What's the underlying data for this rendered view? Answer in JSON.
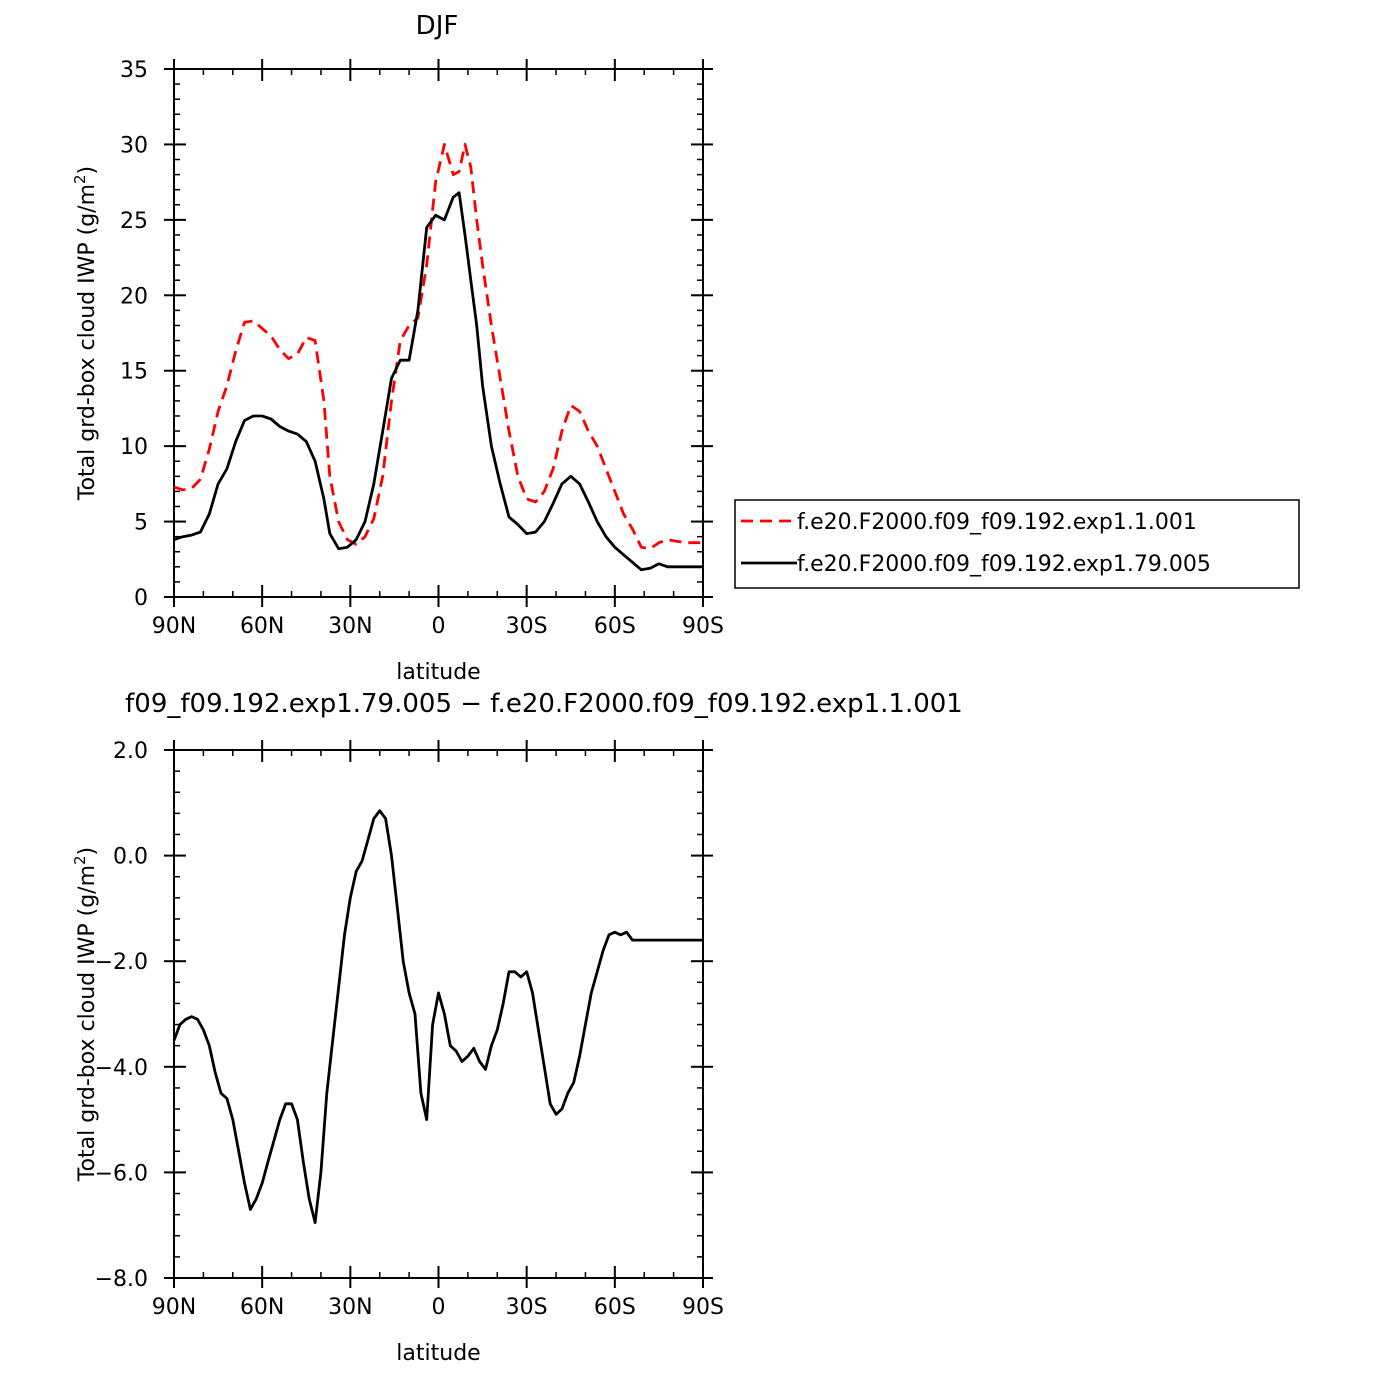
{
  "chart_data": [
    {
      "type": "line",
      "title": "DJF",
      "xlabel": "latitude",
      "ylabel_main": "Total grd-box cloud IWP (g/m",
      "ylabel_sup": "2",
      "ylabel_tail": ")",
      "xlim": [
        90,
        -90
      ],
      "ylim": [
        0,
        35
      ],
      "x_ticks": [
        90,
        60,
        30,
        0,
        -30,
        -60,
        -90
      ],
      "x_tick_labels": [
        "90N",
        "60N",
        "30N",
        "0",
        "30S",
        "60S",
        "90S"
      ],
      "y_ticks": [
        0,
        5,
        10,
        15,
        20,
        25,
        30,
        35
      ],
      "y_tick_labels": [
        "0",
        "5",
        "10",
        "15",
        "20",
        "25",
        "30",
        "35"
      ],
      "legend_position": "right",
      "series": [
        {
          "name": "f.e20.F2000.f09_f09.192.exp1.1.001",
          "color": "#ff0000",
          "dash": "dashed",
          "x": [
            90,
            87,
            84,
            81,
            78,
            75,
            72,
            69,
            66,
            63,
            60,
            57,
            54,
            51,
            48,
            45,
            42,
            39,
            37,
            34,
            31,
            28,
            25,
            22,
            19,
            16,
            13,
            10,
            7,
            4,
            1,
            -2,
            -5,
            -7,
            -9,
            -11,
            -13,
            -15,
            -18,
            -21,
            -24,
            -27,
            -30,
            -33,
            -36,
            -39,
            -42,
            -45,
            -48,
            -51,
            -54,
            -57,
            -60,
            -63,
            -66,
            -69,
            -72,
            -75,
            -78,
            -81,
            -84,
            -87,
            -90
          ],
          "y": [
            7.3,
            7.1,
            7.2,
            7.8,
            9.8,
            12.3,
            14.0,
            16.3,
            18.2,
            18.3,
            17.8,
            17.3,
            16.4,
            15.8,
            16.1,
            17.2,
            17.0,
            13.0,
            8.0,
            5.0,
            3.8,
            3.5,
            4.0,
            5.2,
            8.0,
            13.0,
            17.0,
            18.0,
            18.5,
            22.0,
            27.5,
            30.0,
            28.0,
            28.2,
            30.0,
            28.5,
            25.0,
            22.0,
            18.0,
            14.5,
            11.0,
            8.0,
            6.5,
            6.3,
            7.0,
            8.5,
            11.0,
            12.7,
            12.3,
            11.0,
            10.0,
            8.5,
            7.0,
            5.5,
            4.5,
            3.3,
            3.2,
            3.6,
            3.8,
            3.7,
            3.6,
            3.6,
            3.6
          ]
        },
        {
          "name": "f.e20.F2000.f09_f09.192.exp1.79.005",
          "color": "#000000",
          "dash": "solid",
          "x": [
            90,
            87,
            84,
            81,
            78,
            75,
            72,
            69,
            66,
            63,
            60,
            57,
            54,
            51,
            48,
            45,
            42,
            39,
            37,
            34,
            31,
            28,
            25,
            22,
            19,
            16,
            13,
            10,
            7,
            4,
            1,
            -2,
            -5,
            -7,
            -9,
            -11,
            -13,
            -15,
            -18,
            -21,
            -24,
            -27,
            -30,
            -33,
            -36,
            -39,
            -42,
            -45,
            -48,
            -51,
            -54,
            -57,
            -60,
            -63,
            -66,
            -69,
            -72,
            -75,
            -78,
            -81,
            -84,
            -87,
            -90
          ],
          "y": [
            3.8,
            4.0,
            4.1,
            4.3,
            5.5,
            7.5,
            8.5,
            10.3,
            11.7,
            12.0,
            12.0,
            11.8,
            11.3,
            11.0,
            10.8,
            10.3,
            9.0,
            6.5,
            4.2,
            3.2,
            3.3,
            3.8,
            5.0,
            7.5,
            11.0,
            14.5,
            15.7,
            15.7,
            19.0,
            24.5,
            25.3,
            25.0,
            26.5,
            26.8,
            24.0,
            21.0,
            18.0,
            14.0,
            10.0,
            7.5,
            5.3,
            4.8,
            4.2,
            4.3,
            5.0,
            6.2,
            7.5,
            8.0,
            7.5,
            6.3,
            5.0,
            4.0,
            3.3,
            2.8,
            2.3,
            1.8,
            1.9,
            2.2,
            2.0,
            2.0,
            2.0,
            2.0,
            2.0
          ]
        }
      ]
    },
    {
      "type": "line",
      "title": "f09_f09.192.exp1.79.005 − f.e20.F2000.f09_f09.192.exp1.1.001",
      "xlabel": "latitude",
      "ylabel_main": "Total grd-box cloud IWP (g/m",
      "ylabel_sup": "2",
      "ylabel_tail": ")",
      "xlim": [
        90,
        -90
      ],
      "ylim": [
        -8,
        2
      ],
      "x_ticks": [
        90,
        60,
        30,
        0,
        -30,
        -60,
        -90
      ],
      "x_tick_labels": [
        "90N",
        "60N",
        "30N",
        "0",
        "30S",
        "60S",
        "90S"
      ],
      "y_ticks": [
        -8,
        -6,
        -4,
        -2,
        0,
        2
      ],
      "y_tick_labels": [
        "−8.0",
        "−6.0",
        "−4.0",
        "−2.0",
        "0.0",
        "2.0"
      ],
      "series": [
        {
          "color": "#000000",
          "dash": "solid",
          "x": [
            90,
            88,
            86,
            84,
            82,
            80,
            78,
            76,
            74,
            72,
            70,
            68,
            66,
            64,
            62,
            60,
            58,
            56,
            54,
            52,
            50,
            48,
            46,
            44,
            42,
            40,
            38,
            36,
            34,
            32,
            30,
            28,
            26,
            24,
            22,
            20,
            18,
            16,
            14,
            12,
            10,
            8,
            6,
            4,
            2,
            0,
            -2,
            -4,
            -6,
            -8,
            -10,
            -12,
            -14,
            -16,
            -18,
            -20,
            -22,
            -24,
            -26,
            -28,
            -30,
            -32,
            -34,
            -36,
            -38,
            -40,
            -42,
            -44,
            -46,
            -48,
            -50,
            -52,
            -54,
            -56,
            -58,
            -60,
            -62,
            -64,
            -66,
            -68,
            -70,
            -72,
            -74,
            -76,
            -78,
            -80,
            -82,
            -84,
            -86,
            -88,
            -90
          ],
          "y": [
            -3.5,
            -3.2,
            -3.1,
            -3.05,
            -3.1,
            -3.3,
            -3.6,
            -4.1,
            -4.5,
            -4.6,
            -5.0,
            -5.6,
            -6.2,
            -6.7,
            -6.5,
            -6.2,
            -5.8,
            -5.4,
            -5.0,
            -4.7,
            -4.7,
            -5.0,
            -5.8,
            -6.5,
            -6.95,
            -6.0,
            -4.5,
            -3.5,
            -2.5,
            -1.5,
            -0.8,
            -0.3,
            -0.1,
            0.3,
            0.7,
            0.85,
            0.7,
            0.0,
            -1.0,
            -2.0,
            -2.6,
            -3.0,
            -4.5,
            -5.0,
            -3.2,
            -2.6,
            -3.0,
            -3.6,
            -3.7,
            -3.9,
            -3.8,
            -3.65,
            -3.9,
            -4.05,
            -3.6,
            -3.3,
            -2.8,
            -2.2,
            -2.2,
            -2.3,
            -2.2,
            -2.6,
            -3.3,
            -4.0,
            -4.7,
            -4.9,
            -4.8,
            -4.5,
            -4.3,
            -3.8,
            -3.2,
            -2.6,
            -2.2,
            -1.8,
            -1.5,
            -1.45,
            -1.5,
            -1.45,
            -1.6,
            -1.6,
            -1.6,
            -1.6,
            -1.6,
            -1.6,
            -1.6,
            -1.6,
            -1.6,
            -1.6,
            -1.6,
            -1.6,
            -1.6
          ]
        }
      ]
    }
  ]
}
